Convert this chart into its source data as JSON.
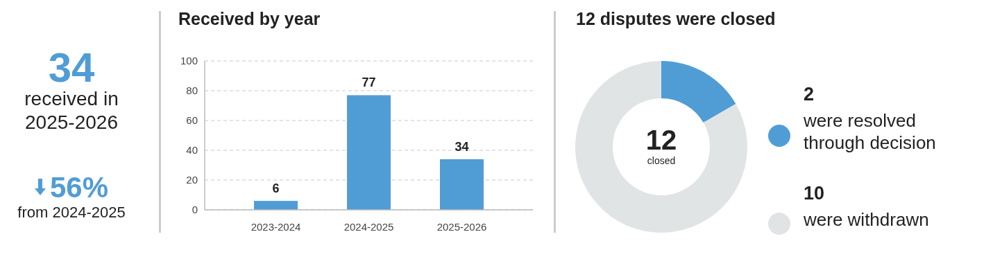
{
  "chart_data": [
    {
      "type": "other",
      "color": "#509dd6",
      "annotations": [
        "34",
        "received in 2025-2026",
        "56%",
        "from 2024-2025"
      ]
    },
    {
      "type": "bar",
      "title": "Received by year",
      "categories": [
        "2023-2024",
        "2024-2025",
        "2025-2026"
      ],
      "values": [
        6,
        77,
        34
      ],
      "color": "#509dd6",
      "ylim": [
        0,
        100
      ],
      "yticks": [
        0,
        20,
        40,
        60,
        80,
        100
      ],
      "grid": "y",
      "data_labels": true
    },
    {
      "type": "donut",
      "title": "12 disputes were closed",
      "categories": [
        "were resolved through decision",
        "were withdrawn"
      ],
      "values": [
        2,
        10
      ],
      "colors": [
        "#509dd6",
        "#e1e4e5"
      ],
      "legend": "right",
      "data_labels": true,
      "annotations": [
        "12",
        "closed"
      ]
    }
  ]
}
